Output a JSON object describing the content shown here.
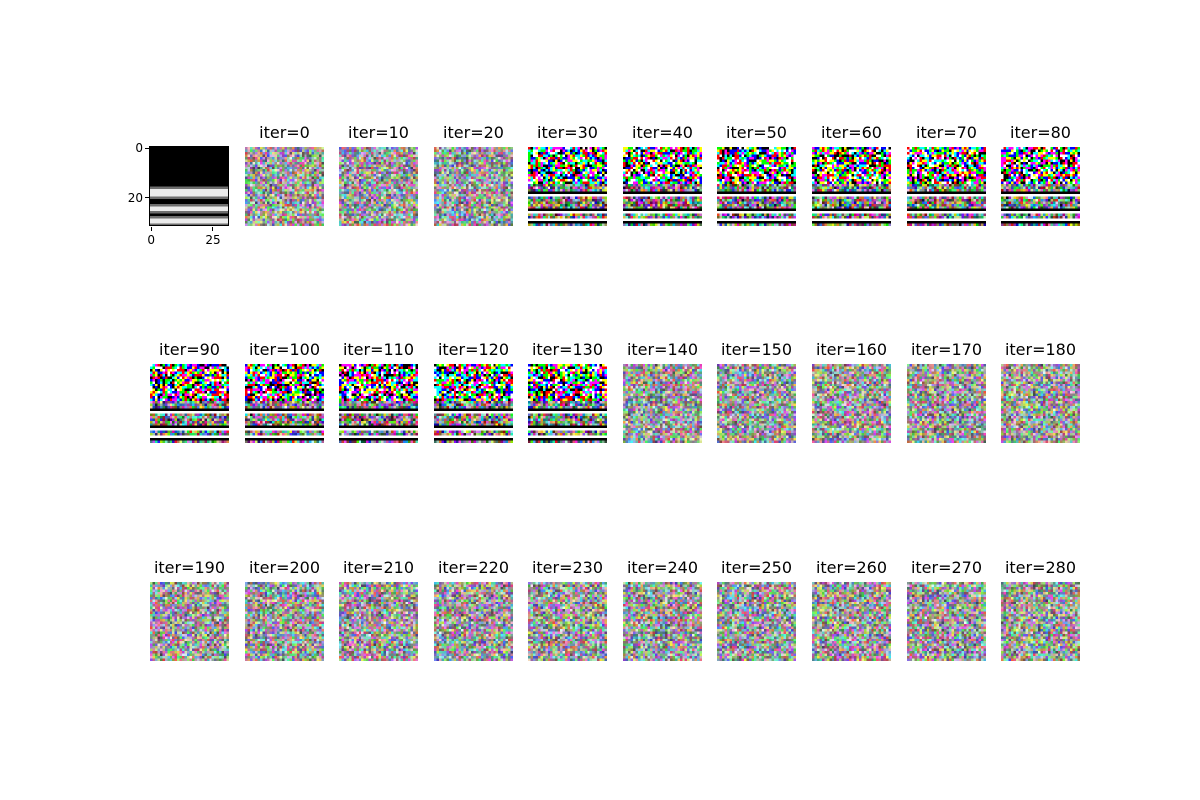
{
  "reference": {
    "x_ticks": [
      "0",
      "25"
    ],
    "y_ticks": [
      "0",
      "20"
    ],
    "x_tick_values": [
      0,
      25
    ],
    "y_tick_values": [
      0,
      20
    ],
    "size": 32,
    "bright_rows": [
      17,
      18,
      19,
      24,
      25,
      29,
      30
    ]
  },
  "panels": [
    {
      "title": "iter=0",
      "state": "noise"
    },
    {
      "title": "iter=10",
      "state": "noise"
    },
    {
      "title": "iter=20",
      "state": "noise"
    },
    {
      "title": "iter=30",
      "state": "structured"
    },
    {
      "title": "iter=40",
      "state": "structured"
    },
    {
      "title": "iter=50",
      "state": "structured"
    },
    {
      "title": "iter=60",
      "state": "structured"
    },
    {
      "title": "iter=70",
      "state": "structured"
    },
    {
      "title": "iter=80",
      "state": "structured"
    },
    {
      "title": "iter=90",
      "state": "structured"
    },
    {
      "title": "iter=100",
      "state": "structured"
    },
    {
      "title": "iter=110",
      "state": "structured"
    },
    {
      "title": "iter=120",
      "state": "structured"
    },
    {
      "title": "iter=130",
      "state": "structured"
    },
    {
      "title": "iter=140",
      "state": "noise"
    },
    {
      "title": "iter=150",
      "state": "noise"
    },
    {
      "title": "iter=160",
      "state": "noise"
    },
    {
      "title": "iter=170",
      "state": "noise"
    },
    {
      "title": "iter=180",
      "state": "noise"
    },
    {
      "title": "iter=190",
      "state": "noise"
    },
    {
      "title": "iter=200",
      "state": "noise"
    },
    {
      "title": "iter=210",
      "state": "noise"
    },
    {
      "title": "iter=220",
      "state": "noise"
    },
    {
      "title": "iter=230",
      "state": "noise"
    },
    {
      "title": "iter=240",
      "state": "noise"
    },
    {
      "title": "iter=250",
      "state": "noise"
    },
    {
      "title": "iter=260",
      "state": "noise"
    },
    {
      "title": "iter=270",
      "state": "noise"
    },
    {
      "title": "iter=280",
      "state": "noise"
    }
  ]
}
